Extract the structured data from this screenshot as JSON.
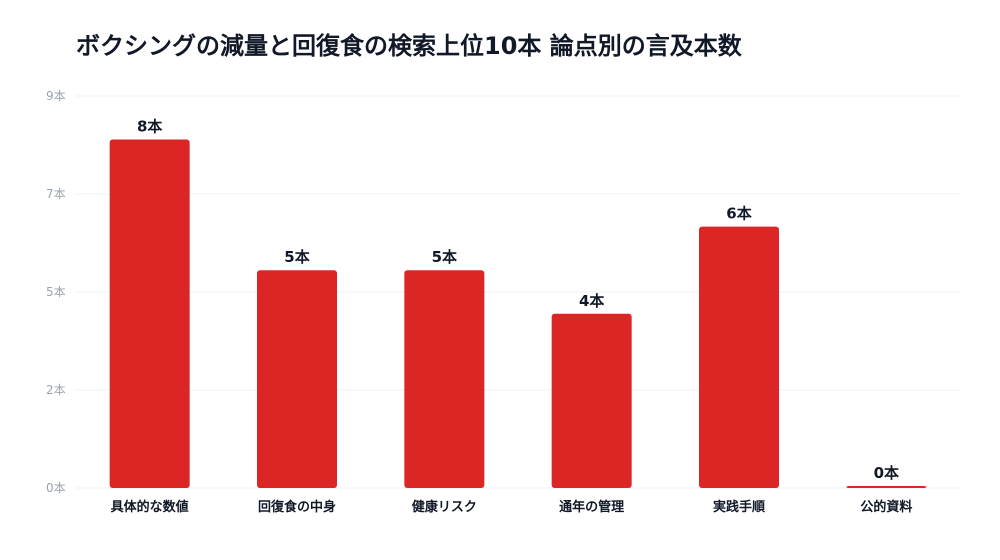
{
  "chart_data": {
    "type": "bar",
    "title": "ボクシングの減量と回復食の検索上位10本 論点別の言及本数",
    "categories": [
      "具体的な数値",
      "回復食の中身",
      "健康リスク",
      "通年の管理",
      "実践手順",
      "公的資料"
    ],
    "values": [
      8,
      5,
      5,
      4,
      6,
      0
    ],
    "data_labels": [
      "8本",
      "5本",
      "5本",
      "4本",
      "6本",
      "0本"
    ],
    "y_ticks": [
      {
        "value": 0,
        "label": "0本"
      },
      {
        "value": 2.25,
        "label": "2本"
      },
      {
        "value": 4.5,
        "label": "5本"
      },
      {
        "value": 6.75,
        "label": "7本"
      },
      {
        "value": 9,
        "label": "9本"
      }
    ],
    "ylim": [
      0,
      9
    ],
    "xlabel": "",
    "ylabel": "",
    "grid": true,
    "legend": "none",
    "colors": {
      "bar": "#dc2626",
      "grid": "#eef0f3",
      "tick": "#9ca3af",
      "text": "#111827"
    }
  }
}
